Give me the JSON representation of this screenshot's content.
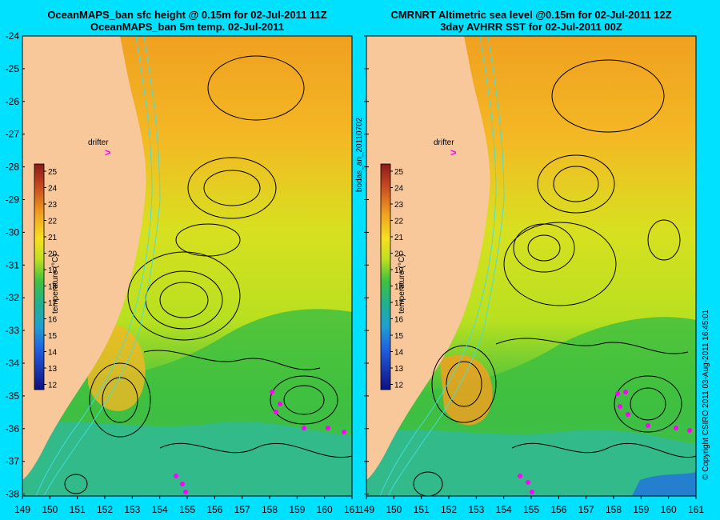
{
  "left_panel": {
    "title_line1": "OceanMAPS_ban sfc height @ 0.15m for 02-Jul-2011 11Z",
    "title_line2": "OceanMAPS_ban 5m temp. 02-Jul-2011"
  },
  "right_panel": {
    "title_line1": "CMRNRT Altimetric sea level  @0.15m  for 02-Jul-2011 12Z",
    "title_line2": "3day AVHRR SST for 02-Jul-2011 00Z"
  },
  "drifter_label": "drifter",
  "drifter_marker": ">",
  "colorbar": {
    "label": "temperature (°C)",
    "ticks": [
      "25",
      "24",
      "23",
      "22",
      "21",
      "20",
      "19",
      "18",
      "17",
      "16",
      "15",
      "14",
      "13",
      "12"
    ]
  },
  "lat_ticks": [
    "-24",
    "-25",
    "-26",
    "-27",
    "-28",
    "-29",
    "-30",
    "-31",
    "-32",
    "-33",
    "-34",
    "-35",
    "-36",
    "-37",
    "-38"
  ],
  "lon_ticks": [
    "149",
    "150",
    "151",
    "152",
    "153",
    "154",
    "155",
    "156",
    "157",
    "158",
    "159",
    "160",
    "161"
  ],
  "middle_label": "bodas_an_20110702",
  "copyright": "© Copyright CSIRO 2011 03-Aug-2011 16:45:01",
  "colors": {
    "background": "#00e0ff",
    "land": "#f9c89a",
    "warm": "#f0a020",
    "mid": "#c8e020",
    "cool": "#40c040",
    "cold": "#20b0b0",
    "contour": "#000000",
    "isobath": "#40e0e0",
    "marker": "#ff00ff"
  }
}
